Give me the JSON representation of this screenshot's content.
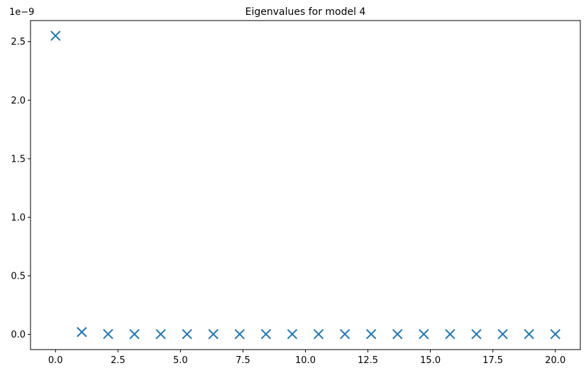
{
  "chart_data": {
    "type": "scatter",
    "title": "Eigenvalues for model 4",
    "xlabel": "",
    "ylabel": "",
    "y_offset_label": "1e−9",
    "y_scale": 1e-09,
    "xlim": [
      -1.0,
      21.0
    ],
    "ylim": [
      -0.13,
      2.68
    ],
    "x_ticks": [
      0.0,
      2.5,
      5.0,
      7.5,
      10.0,
      12.5,
      15.0,
      17.5,
      20.0
    ],
    "x_tick_labels": [
      "0.0",
      "2.5",
      "5.0",
      "7.5",
      "10.0",
      "12.5",
      "15.0",
      "17.5",
      "20.0"
    ],
    "y_ticks": [
      0.0,
      0.5,
      1.0,
      1.5,
      2.0,
      2.5
    ],
    "y_tick_labels": [
      "0.0",
      "0.5",
      "1.0",
      "1.5",
      "2.0",
      "2.5"
    ],
    "grid": false,
    "marker": "x",
    "color": "#1f77b4",
    "series": [
      {
        "x": [
          0.0,
          1.0526,
          2.1053,
          3.1579,
          4.2105,
          5.2632,
          6.3158,
          7.3684,
          8.4211,
          9.4737,
          10.5263,
          11.5789,
          12.6316,
          13.6842,
          14.7368,
          15.7895,
          16.8421,
          17.8947,
          18.9474,
          20.0
        ],
        "y": [
          2.55,
          0.02,
          0.003,
          0.002,
          0.002,
          0.002,
          0.002,
          0.002,
          0.002,
          0.002,
          0.002,
          0.002,
          0.002,
          0.002,
          0.002,
          0.002,
          0.002,
          0.002,
          0.002,
          0.002
        ]
      }
    ]
  }
}
